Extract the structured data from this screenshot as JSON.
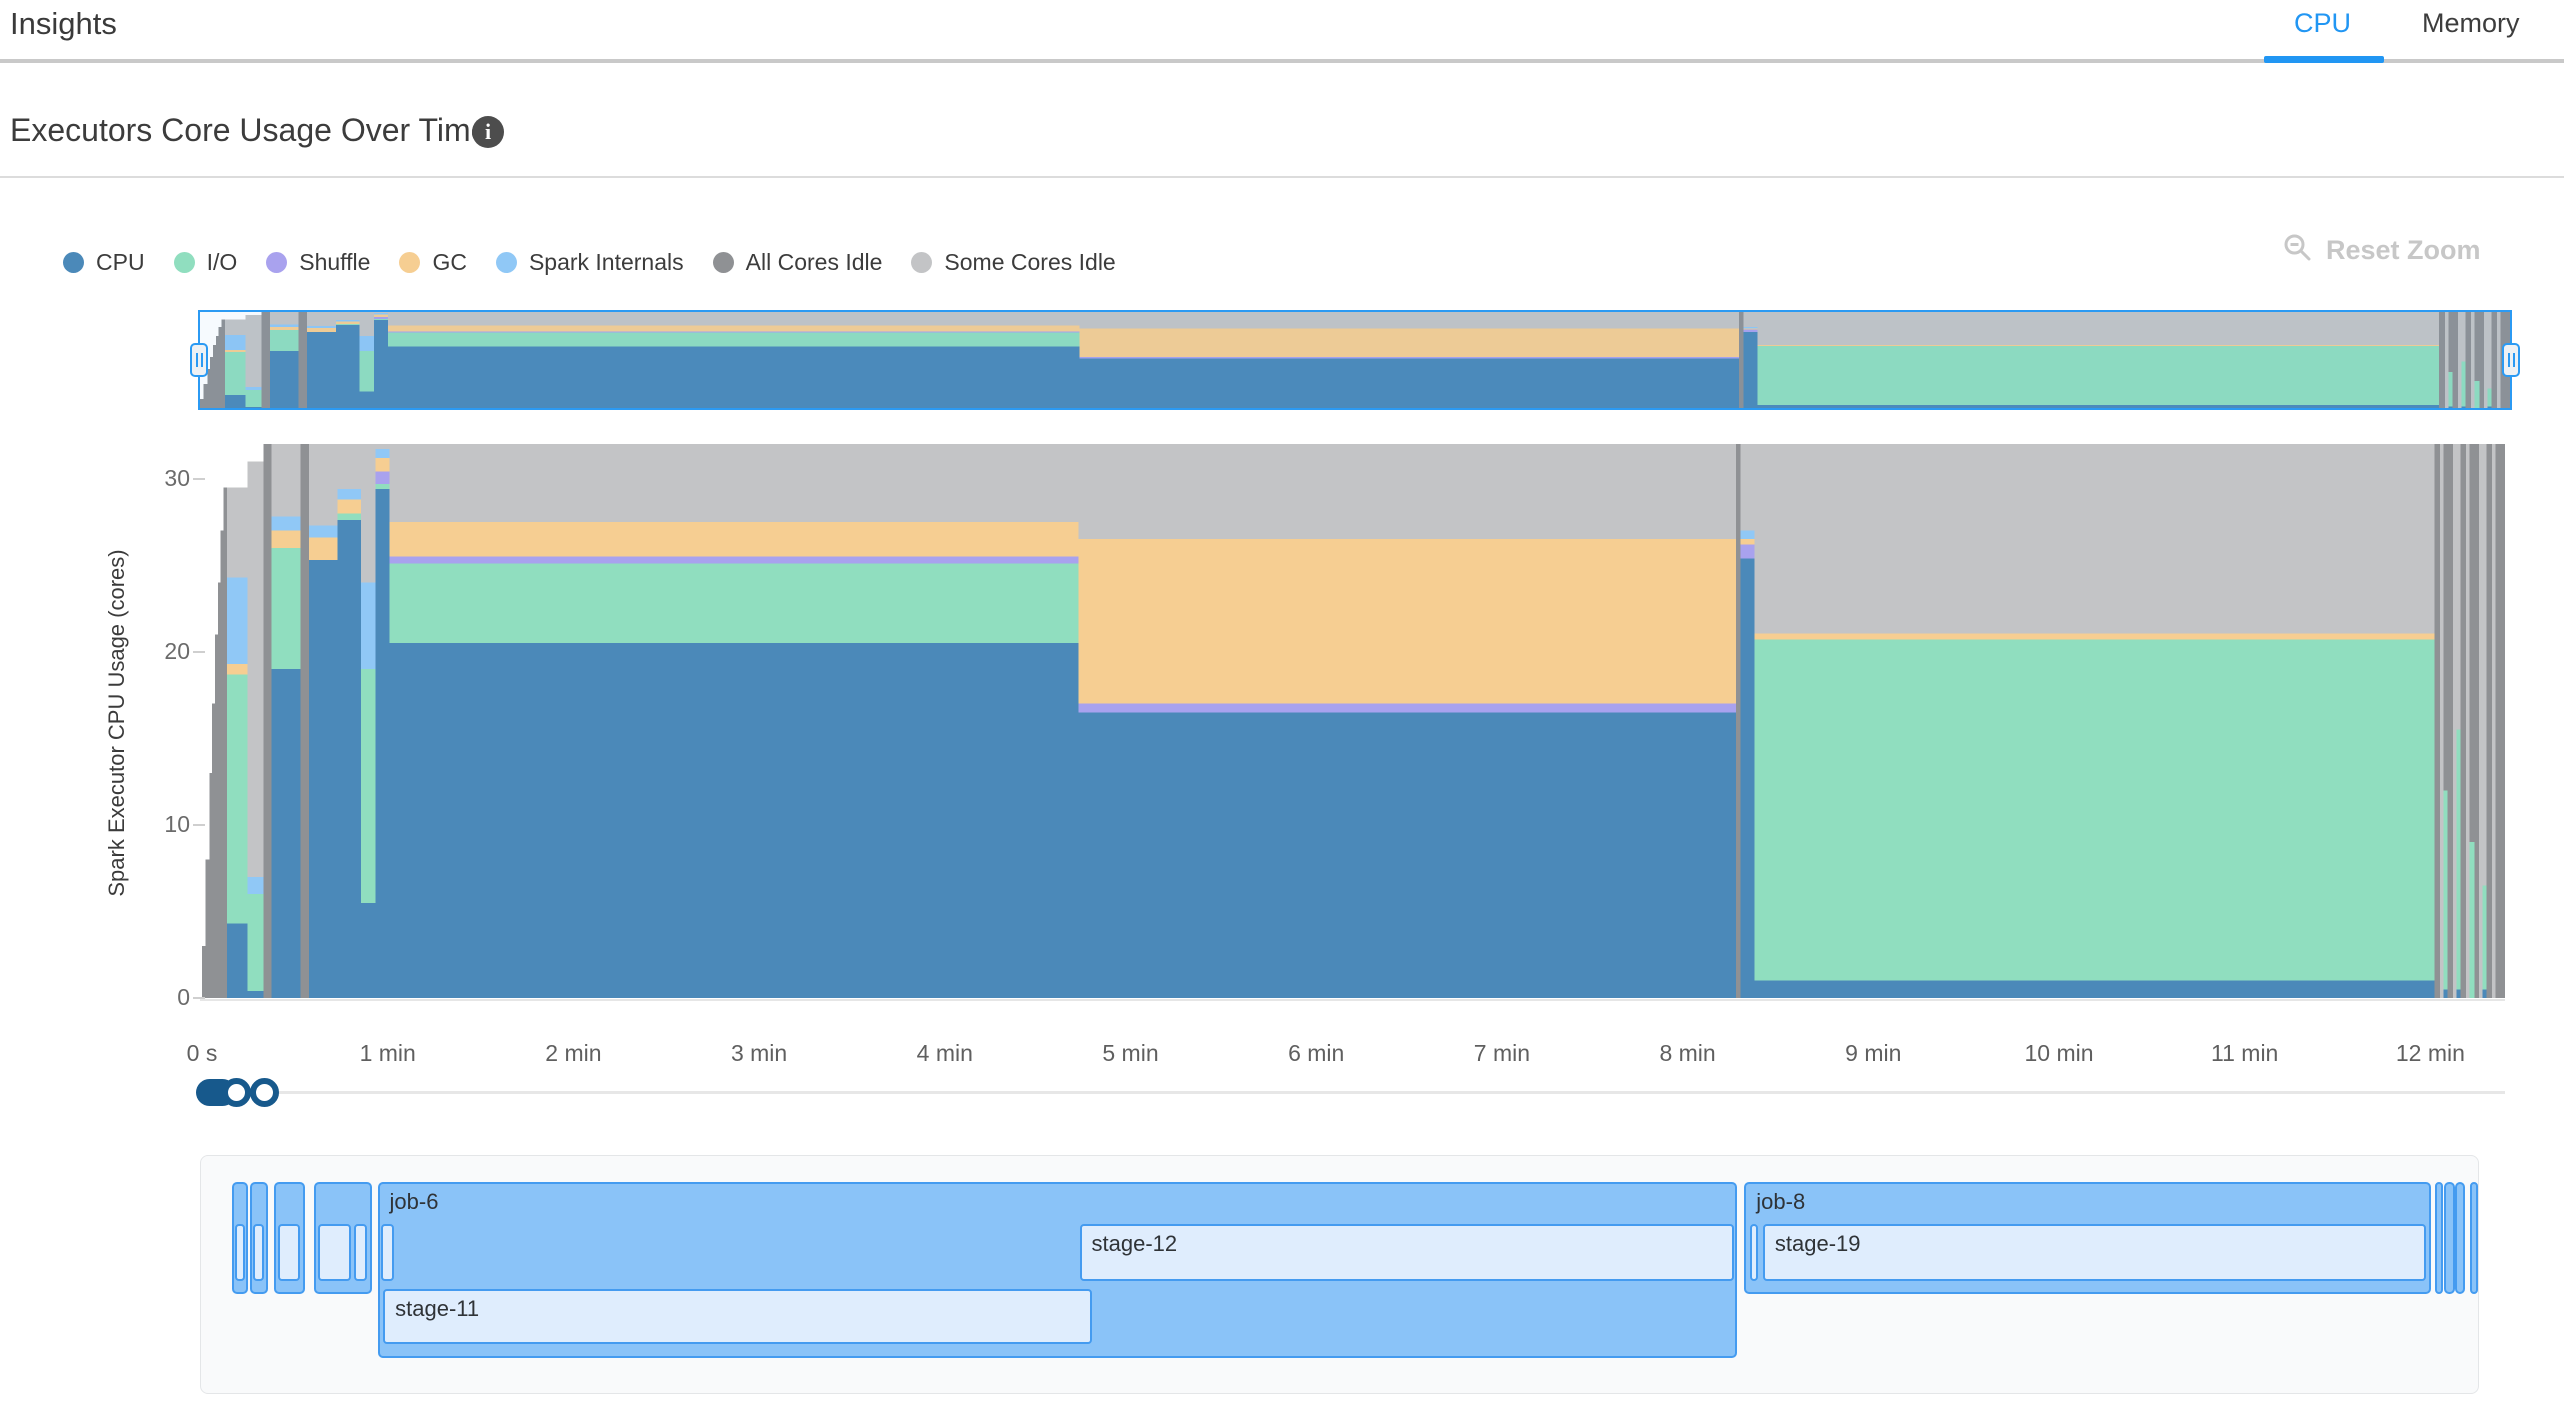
{
  "header": {
    "title": "Insights",
    "tabs": [
      {
        "label": "CPU",
        "active": true
      },
      {
        "label": "Memory",
        "active": false
      }
    ],
    "active_tab_color": "#2196f3"
  },
  "section": {
    "title": "Executors Core Usage Over Time",
    "info_icon_glyph": "i"
  },
  "toolbar": {
    "reset_zoom_label": "Reset Zoom",
    "reset_zoom_icon": "zoom-out-magnifier-icon"
  },
  "palette": {
    "cpu": "#4b89b9",
    "io": "#90debf",
    "shuffle": "#a9a2ee",
    "gc": "#f6ce92",
    "internals": "#90c8f6",
    "allIdle": "#8f9194",
    "someIdle": "#c3c4c6"
  },
  "legend": {
    "items": [
      {
        "key": "cpu",
        "label": "CPU"
      },
      {
        "key": "io",
        "label": "I/O"
      },
      {
        "key": "shuffle",
        "label": "Shuffle"
      },
      {
        "key": "gc",
        "label": "GC"
      },
      {
        "key": "internals",
        "label": "Spark Internals"
      },
      {
        "key": "allIdle",
        "label": "All Cores Idle"
      },
      {
        "key": "someIdle",
        "label": "Some Cores Idle"
      }
    ]
  },
  "chart_data": {
    "type": "area",
    "stacked": true,
    "title": "Executors Core Usage Over Time",
    "ylabel": "Spark Executor CPU Usage (cores)",
    "xlabel": "",
    "x_unit": "minutes",
    "xlim": [
      0,
      12.4
    ],
    "ylim": [
      0,
      32
    ],
    "grid": false,
    "legend_position": "top-left",
    "y_ticks": [
      {
        "v": 0,
        "label": "0"
      },
      {
        "v": 10,
        "label": "10"
      },
      {
        "v": 20,
        "label": "20"
      },
      {
        "v": 30,
        "label": "30"
      }
    ],
    "x_ticks": [
      {
        "t": 0,
        "label": "0 s"
      },
      {
        "t": 1,
        "label": "1 min"
      },
      {
        "t": 2,
        "label": "2 min"
      },
      {
        "t": 3,
        "label": "3 min"
      },
      {
        "t": 4,
        "label": "4 min"
      },
      {
        "t": 5,
        "label": "5 min"
      },
      {
        "t": 6,
        "label": "6 min"
      },
      {
        "t": 7,
        "label": "7 min"
      },
      {
        "t": 8,
        "label": "8 min"
      },
      {
        "t": 9,
        "label": "9 min"
      },
      {
        "t": 10,
        "label": "10 min"
      },
      {
        "t": 11,
        "label": "11 min"
      },
      {
        "t": 12,
        "label": "12 min"
      }
    ],
    "series_order": [
      "cpu",
      "io",
      "shuffle",
      "gc",
      "internals",
      "someIdle",
      "allIdle"
    ],
    "segments": [
      {
        "t0": 0.0,
        "t1": 0.02,
        "allIdle": 3
      },
      {
        "t0": 0.02,
        "t1": 0.04,
        "allIdle": 8
      },
      {
        "t0": 0.04,
        "t1": 0.055,
        "allIdle": 13
      },
      {
        "t0": 0.055,
        "t1": 0.07,
        "allIdle": 17
      },
      {
        "t0": 0.07,
        "t1": 0.085,
        "allIdle": 21
      },
      {
        "t0": 0.085,
        "t1": 0.1,
        "allIdle": 24
      },
      {
        "t0": 0.1,
        "t1": 0.115,
        "allIdle": 27
      },
      {
        "t0": 0.115,
        "t1": 0.135,
        "allIdle": 29.5
      },
      {
        "t0": 0.135,
        "t1": 0.245,
        "cpu": 4.3,
        "io": 14.4,
        "gc": 0.6,
        "internals": 5.0,
        "someIdle": 5.2
      },
      {
        "t0": 0.245,
        "t1": 0.33,
        "cpu": 0.4,
        "io": 5.6,
        "internals": 1.0,
        "someIdle": 24.0
      },
      {
        "t0": 0.33,
        "t1": 0.375,
        "allIdle": 32
      },
      {
        "t0": 0.375,
        "t1": 0.53,
        "cpu": 19.0,
        "io": 7.0,
        "gc": 1.0,
        "internals": 0.8,
        "someIdle": 4.2
      },
      {
        "t0": 0.53,
        "t1": 0.575,
        "allIdle": 32
      },
      {
        "t0": 0.575,
        "t1": 0.73,
        "cpu": 25.3,
        "gc": 1.3,
        "internals": 0.7,
        "someIdle": 4.7
      },
      {
        "t0": 0.73,
        "t1": 0.855,
        "cpu": 27.6,
        "io": 0.4,
        "gc": 0.8,
        "internals": 0.6,
        "someIdle": 2.6
      },
      {
        "t0": 0.855,
        "t1": 0.935,
        "cpu": 5.5,
        "io": 13.5,
        "internals": 5.0,
        "someIdle": 8.0
      },
      {
        "t0": 0.935,
        "t1": 1.01,
        "cpu": 29.4,
        "io": 0.3,
        "shuffle": 0.7,
        "gc": 0.8,
        "internals": 0.5,
        "someIdle": 0.3
      },
      {
        "t0": 1.01,
        "t1": 4.72,
        "cpu": 20.5,
        "io": 4.6,
        "shuffle": 0.4,
        "gc": 2.0,
        "someIdle": 4.5
      },
      {
        "t0": 4.72,
        "t1": 8.26,
        "cpu": 16.5,
        "shuffle": 0.5,
        "gc": 9.5,
        "someIdle": 5.5
      },
      {
        "t0": 8.26,
        "t1": 8.285,
        "allIdle": 32
      },
      {
        "t0": 8.285,
        "t1": 8.36,
        "cpu": 25.4,
        "shuffle": 0.8,
        "gc": 0.3,
        "internals": 0.5,
        "someIdle": 5.0
      },
      {
        "t0": 8.36,
        "t1": 12.02,
        "cpu": 1.0,
        "io": 19.7,
        "gc": 0.35,
        "someIdle": 10.95
      },
      {
        "t0": 12.02,
        "t1": 12.05,
        "allIdle": 32
      },
      {
        "t0": 12.05,
        "t1": 12.07,
        "someIdle": 32
      },
      {
        "t0": 12.07,
        "t1": 12.09,
        "cpu": 0.5,
        "io": 11.5,
        "allIdle": 20
      },
      {
        "t0": 12.09,
        "t1": 12.12,
        "allIdle": 32
      },
      {
        "t0": 12.12,
        "t1": 12.14,
        "someIdle": 32
      },
      {
        "t0": 12.14,
        "t1": 12.16,
        "cpu": 0.5,
        "io": 15.0,
        "someIdle": 16.5
      },
      {
        "t0": 12.16,
        "t1": 12.19,
        "allIdle": 32
      },
      {
        "t0": 12.19,
        "t1": 12.21,
        "someIdle": 32
      },
      {
        "t0": 12.21,
        "t1": 12.235,
        "io": 9.0,
        "allIdle": 23
      },
      {
        "t0": 12.235,
        "t1": 12.26,
        "allIdle": 32
      },
      {
        "t0": 12.26,
        "t1": 12.28,
        "someIdle": 32
      },
      {
        "t0": 12.28,
        "t1": 12.3,
        "cpu": 0.5,
        "io": 6.0,
        "someIdle": 25.5
      },
      {
        "t0": 12.3,
        "t1": 12.33,
        "allIdle": 32
      },
      {
        "t0": 12.33,
        "t1": 12.35,
        "someIdle": 32
      },
      {
        "t0": 12.35,
        "t1": 12.4,
        "allIdle": 32
      }
    ]
  },
  "gantt": {
    "jobs": [
      {
        "label": "",
        "t0": 0.155,
        "t1": 0.245,
        "tall": false,
        "stages": [
          {
            "label": "",
            "t0": 0.175,
            "t1": 0.225,
            "row": 1
          }
        ]
      },
      {
        "label": "",
        "t0": 0.255,
        "t1": 0.35,
        "tall": false,
        "stages": [
          {
            "label": "",
            "t0": 0.27,
            "t1": 0.33,
            "row": 1
          }
        ]
      },
      {
        "label": "",
        "t0": 0.385,
        "t1": 0.55,
        "tall": false,
        "stages": [
          {
            "label": "",
            "t0": 0.405,
            "t1": 0.525,
            "row": 1
          }
        ]
      },
      {
        "label": "",
        "t0": 0.6,
        "t1": 0.91,
        "tall": false,
        "stages": [
          {
            "label": "",
            "t0": 0.62,
            "t1": 0.795,
            "row": 1
          },
          {
            "label": "",
            "t0": 0.815,
            "t1": 0.885,
            "row": 1
          }
        ]
      },
      {
        "label": "job-6",
        "t0": 0.94,
        "t1": 8.26,
        "tall": true,
        "stages": [
          {
            "label": "",
            "t0": 0.96,
            "t1": 1.03,
            "row": 1
          },
          {
            "label": "stage-12",
            "t0": 4.72,
            "t1": 8.245,
            "row": 1
          },
          {
            "label": "stage-11",
            "t0": 0.97,
            "t1": 4.79,
            "row": 2
          }
        ]
      },
      {
        "label": "job-8",
        "t0": 8.3,
        "t1": 12.0,
        "tall": false,
        "stages": [
          {
            "label": "",
            "t0": 8.33,
            "t1": 8.375,
            "row": 1
          },
          {
            "label": "stage-19",
            "t0": 8.4,
            "t1": 11.97,
            "row": 1
          }
        ]
      },
      {
        "label": "",
        "t0": 12.02,
        "t1": 12.06,
        "tall": false,
        "stages": []
      },
      {
        "label": "",
        "t0": 12.07,
        "t1": 12.125,
        "tall": false,
        "stages": []
      },
      {
        "label": "",
        "t0": 12.125,
        "t1": 12.18,
        "tall": false,
        "stages": []
      },
      {
        "label": "",
        "t0": 12.21,
        "t1": 12.25,
        "tall": false,
        "stages": []
      }
    ]
  }
}
